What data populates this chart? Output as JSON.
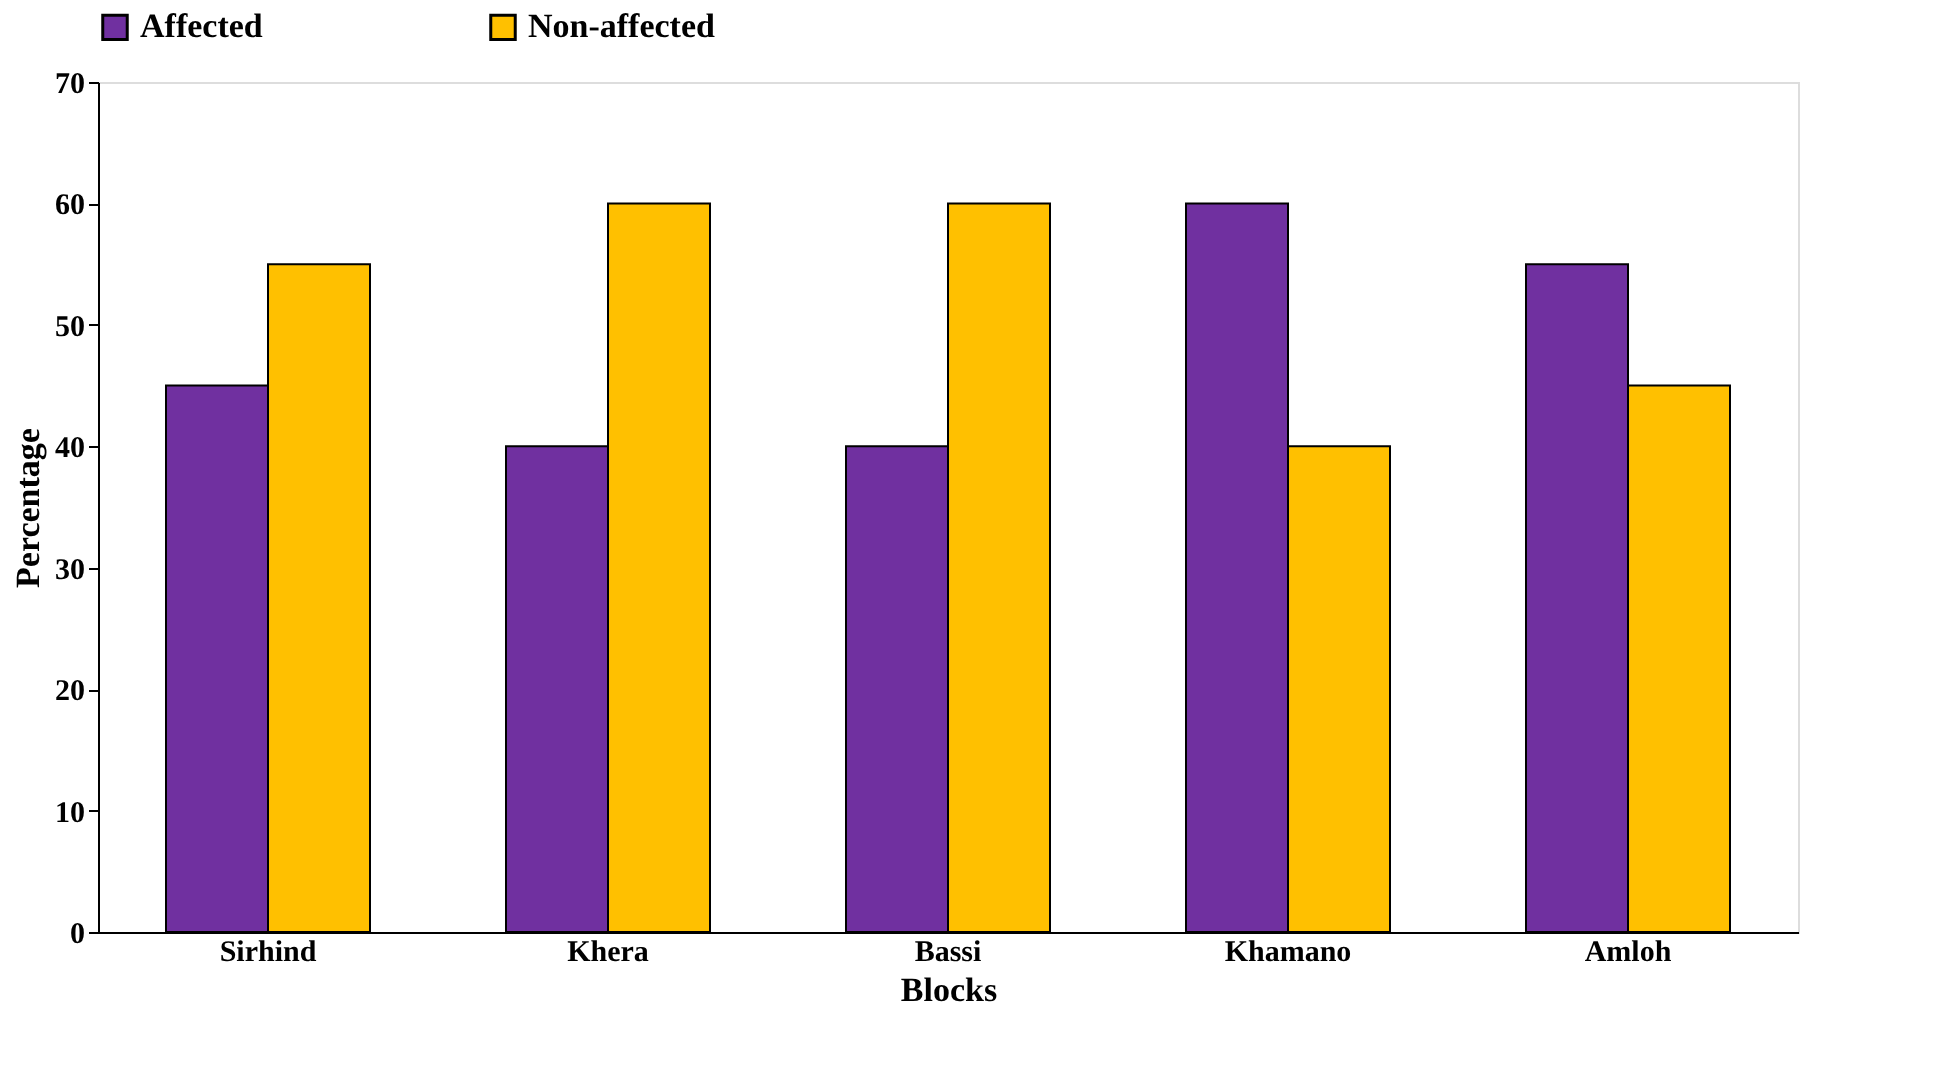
{
  "chart_data": {
    "type": "bar",
    "xlabel": "Blocks",
    "ylabel": "Percentage",
    "categories": [
      "Sirhind",
      "Khera",
      "Bassi",
      "Khamano",
      "Amloh"
    ],
    "series": [
      {
        "name": "Affected",
        "color": "#7030a0",
        "values": [
          45,
          40,
          40,
          60,
          55
        ]
      },
      {
        "name": "Non-affected",
        "color": "#ffc000",
        "values": [
          55,
          60,
          60,
          40,
          45
        ]
      }
    ],
    "ylim": [
      0,
      70
    ],
    "yticks": [
      0,
      10,
      20,
      30,
      40,
      50,
      60,
      70
    ],
    "grid": false,
    "legend": "top"
  }
}
